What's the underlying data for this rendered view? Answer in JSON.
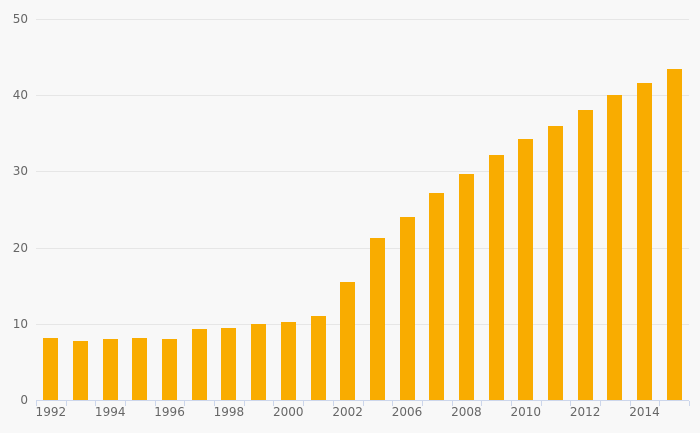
{
  "chart_data": {
    "type": "bar",
    "title": "",
    "xlabel": "",
    "ylabel": "",
    "values": [
      8.1,
      7.8,
      8.0,
      8.1,
      8.0,
      9.3,
      9.5,
      10.0,
      10.2,
      11.0,
      15.5,
      21.2,
      24.0,
      27.2,
      29.7,
      32.2,
      34.3,
      36.0,
      38.1,
      40.0,
      41.6,
      43.4
    ],
    "x_tick_labels": [
      "1992",
      "1994",
      "1996",
      "1998",
      "2000",
      "2002",
      "2006",
      "2008",
      "2010",
      "2012",
      "2014"
    ],
    "x_labeled_bar_indices": [
      0,
      2,
      4,
      6,
      8,
      10,
      12,
      14,
      16,
      18,
      20
    ],
    "y_ticks": [
      0,
      10,
      20,
      30,
      40,
      50
    ],
    "ylim": [
      0,
      50
    ],
    "grid": true,
    "legend": false,
    "colors": {
      "bar": "#F9AC00",
      "background": "#f8f8f8",
      "gridline": "#e6e6e6",
      "axis": "#ccd6eb",
      "label_text": "#666666"
    }
  }
}
